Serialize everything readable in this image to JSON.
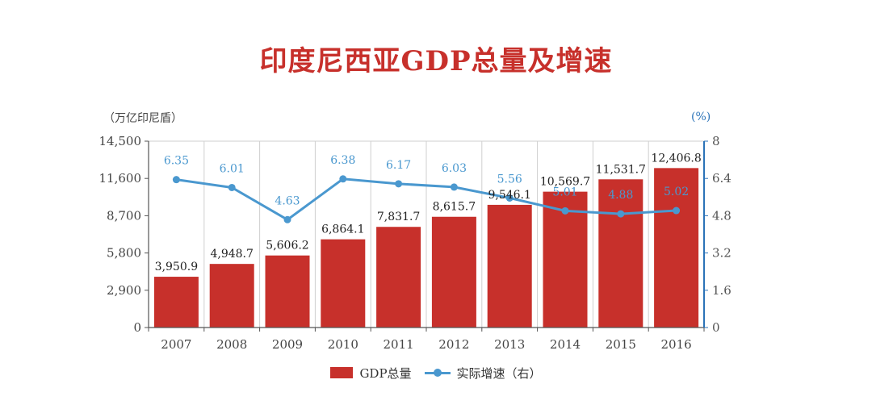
{
  "chart_data": {
    "type": "bar",
    "title": "印度尼西亚GDP总量及增速",
    "categories": [
      "2007",
      "2008",
      "2009",
      "2010",
      "2011",
      "2012",
      "2013",
      "2014",
      "2015",
      "2016"
    ],
    "series": [
      {
        "name": "GDP总量",
        "type": "bar",
        "axis": "left",
        "values": [
          3950.9,
          4948.7,
          5606.2,
          6864.1,
          7831.7,
          8615.7,
          9546.1,
          10569.7,
          11531.7,
          12406.8
        ],
        "labels": [
          "3,950.9",
          "4,948.7",
          "5,606.2",
          "6,864.1",
          "7,831.7",
          "8,615.7",
          "9,546.1",
          "10,569.7",
          "11,531.7",
          "12,406.8"
        ]
      },
      {
        "name": "实际增速（右）",
        "type": "line",
        "axis": "right",
        "values": [
          6.35,
          6.01,
          4.63,
          6.38,
          6.17,
          6.03,
          5.56,
          5.01,
          4.88,
          5.02
        ],
        "labels": [
          "6.35",
          "6.01",
          "4.63",
          "6.38",
          "6.17",
          "6.03",
          "5.56",
          "5.01",
          "4.88",
          "5.02"
        ]
      }
    ],
    "y_left": {
      "unit_label": "（万亿印尼盾）",
      "ylim": [
        0,
        14500
      ],
      "ticks": [
        0,
        2900,
        5800,
        8700,
        11600,
        14500
      ],
      "tick_labels": [
        "0",
        "2,900",
        "5,800",
        "8,700",
        "11,600",
        "14,500"
      ]
    },
    "y_right": {
      "unit_label": "(%)",
      "ylim": [
        0,
        8
      ],
      "ticks": [
        0,
        1.6,
        3.2,
        4.8,
        6.4,
        8
      ],
      "tick_labels": [
        "0",
        "1.6",
        "3.2",
        "4.8",
        "6.4",
        "8"
      ]
    },
    "grid": "vertical",
    "legend_position": "bottom-center",
    "colors": {
      "bar": "#c7302b",
      "line": "#4a98cf",
      "right_axis": "#2b73b8",
      "title": "#c7302b"
    }
  },
  "legend": {
    "bar_label": "GDP总量",
    "line_label": "实际增速（右）"
  }
}
